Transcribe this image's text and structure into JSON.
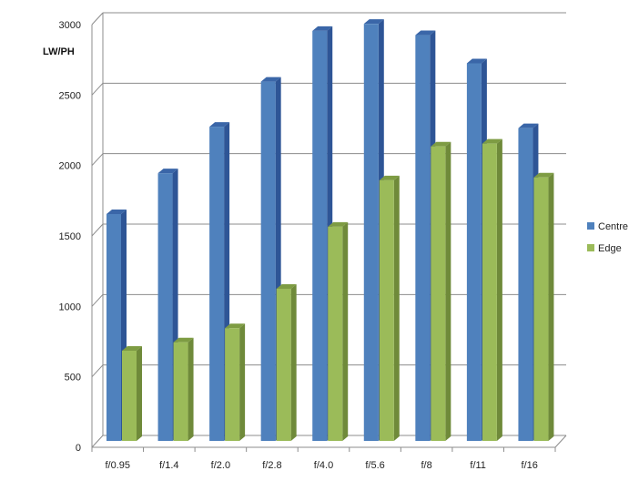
{
  "chart_data": {
    "type": "bar",
    "title": "",
    "xlabel": "",
    "ylabel": "LW/PH",
    "ylim": [
      0,
      3000
    ],
    "yticks": [
      0,
      500,
      1000,
      1500,
      2000,
      2500,
      3000
    ],
    "grid": true,
    "legend_position": "right",
    "categories": [
      "f/0.95",
      "f/1.4",
      "f/2.0",
      "f/2.8",
      "f/4.0",
      "f/5.6",
      "f/8",
      "f/11",
      "f/16"
    ],
    "series": [
      {
        "name": "Centre",
        "color": "#4F81BD",
        "side_color": "#2E5596",
        "top_color": "#3A66A8",
        "values": [
          1610,
          1900,
          2230,
          2550,
          2910,
          2960,
          2880,
          2680,
          2220
        ]
      },
      {
        "name": "Edge",
        "color": "#9BBB59",
        "side_color": "#6F8A3A",
        "top_color": "#7E9C43",
        "values": [
          640,
          700,
          800,
          1080,
          1520,
          1850,
          2090,
          2110,
          1870
        ]
      }
    ]
  }
}
